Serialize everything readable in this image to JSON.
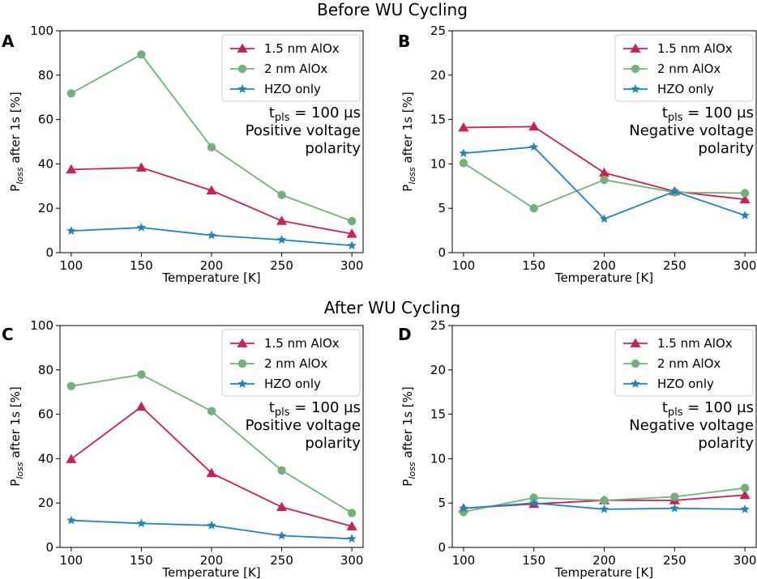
{
  "figure": {
    "section_titles": [
      "Before WU Cycling",
      "After WU Cycling"
    ]
  },
  "colors": {
    "1.5 nm AlOx": "#cc1f5a",
    "2 nm AlOx": "#72b27a",
    "HZO only": "#1d86b9"
  },
  "chart_data": [
    {
      "panel": "A",
      "type": "line",
      "x": [
        100,
        150,
        200,
        250,
        300
      ],
      "xlabel": "Temperature [K]",
      "ylabel": "Ploss after 1s [%]",
      "ylabel_main": "P",
      "ylabel_sub": "loss",
      "ylabel_rest": " after 1s [%]",
      "xlim": [
        92,
        308
      ],
      "ylim": [
        0,
        100
      ],
      "yticks": [
        0,
        20,
        40,
        60,
        80,
        100
      ],
      "xticks": [
        100,
        150,
        200,
        250,
        300
      ],
      "legend": "top-right",
      "annotation": {
        "tpls": "t",
        "tpls_sub": "pls",
        "tpls_rest": " = 100 µs",
        "line2": "Positive voltage",
        "line3": "polarity"
      },
      "series": [
        {
          "name": "1.5 nm AlOx",
          "marker": "triangle",
          "values": [
            37.5,
            38.3,
            28.0,
            14.3,
            8.5
          ]
        },
        {
          "name": "2 nm AlOx",
          "marker": "circle",
          "values": [
            71.8,
            89.3,
            47.5,
            26.0,
            14.2
          ]
        },
        {
          "name": "HZO only",
          "marker": "star",
          "values": [
            9.8,
            11.3,
            7.8,
            5.8,
            3.2
          ]
        }
      ]
    },
    {
      "panel": "B",
      "type": "line",
      "x": [
        100,
        150,
        200,
        250,
        300
      ],
      "xlabel": "Temperature [K]",
      "ylabel": "Ploss after 1s [%]",
      "ylabel_main": "P",
      "ylabel_sub": "loss",
      "ylabel_rest": " after 1s [%]",
      "xlim": [
        92,
        308
      ],
      "ylim": [
        0,
        25
      ],
      "yticks": [
        0,
        5,
        10,
        15,
        20,
        25
      ],
      "xticks": [
        100,
        150,
        200,
        250,
        300
      ],
      "legend": "top-right",
      "annotation": {
        "tpls": "t",
        "tpls_sub": "pls",
        "tpls_rest": " = 100 µs",
        "line2": "Negative voltage",
        "line3": "polarity"
      },
      "series": [
        {
          "name": "1.5 nm AlOx",
          "marker": "triangle",
          "values": [
            14.1,
            14.2,
            9.0,
            6.9,
            6.0
          ]
        },
        {
          "name": "2 nm AlOx",
          "marker": "circle",
          "values": [
            10.1,
            5.0,
            8.2,
            6.8,
            6.7
          ]
        },
        {
          "name": "HZO only",
          "marker": "star",
          "values": [
            11.2,
            11.9,
            3.8,
            6.9,
            4.2
          ]
        }
      ]
    },
    {
      "panel": "C",
      "type": "line",
      "x": [
        100,
        150,
        200,
        250,
        300
      ],
      "xlabel": "Temperature [K]",
      "ylabel": "Ploss after 1s [%]",
      "ylabel_main": "P",
      "ylabel_sub": "loss",
      "ylabel_rest": " after 1s [%]",
      "xlim": [
        92,
        308
      ],
      "ylim": [
        0,
        100
      ],
      "yticks": [
        0,
        20,
        40,
        60,
        80,
        100
      ],
      "xticks": [
        100,
        150,
        200,
        250,
        300
      ],
      "legend": "top-right",
      "annotation": {
        "tpls": "t",
        "tpls_sub": "pls",
        "tpls_rest": " = 100 µs",
        "line2": "Positive voltage",
        "line3": "polarity"
      },
      "series": [
        {
          "name": "1.5 nm AlOx",
          "marker": "triangle",
          "values": [
            39.8,
            63.4,
            33.5,
            18.2,
            9.5
          ]
        },
        {
          "name": "2 nm AlOx",
          "marker": "circle",
          "values": [
            72.7,
            77.9,
            61.4,
            34.7,
            15.5
          ]
        },
        {
          "name": "HZO only",
          "marker": "star",
          "values": [
            12.2,
            10.8,
            9.9,
            5.3,
            3.9
          ]
        }
      ]
    },
    {
      "panel": "D",
      "type": "line",
      "x": [
        100,
        150,
        200,
        250,
        300
      ],
      "xlabel": "Temperature [K]",
      "ylabel": "Ploss after 1s [%]",
      "ylabel_main": "P",
      "ylabel_sub": "loss",
      "ylabel_rest": " after 1s [%]",
      "xlim": [
        92,
        308
      ],
      "ylim": [
        0,
        25
      ],
      "yticks": [
        0,
        5,
        10,
        15,
        20,
        25
      ],
      "xticks": [
        100,
        150,
        200,
        250,
        300
      ],
      "legend": "top-right",
      "annotation": {
        "tpls": "t",
        "tpls_sub": "pls",
        "tpls_rest": " = 100 µs",
        "line2": "Negative voltage",
        "line3": "polarity"
      },
      "series": [
        {
          "name": "1.5 nm AlOx",
          "marker": "triangle",
          "values": [
            4.4,
            4.9,
            5.3,
            5.3,
            5.9
          ]
        },
        {
          "name": "2 nm AlOx",
          "marker": "circle",
          "values": [
            4.0,
            5.6,
            5.3,
            5.7,
            6.7
          ]
        },
        {
          "name": "HZO only",
          "marker": "star",
          "values": [
            4.4,
            5.0,
            4.3,
            4.4,
            4.3
          ]
        }
      ]
    }
  ]
}
